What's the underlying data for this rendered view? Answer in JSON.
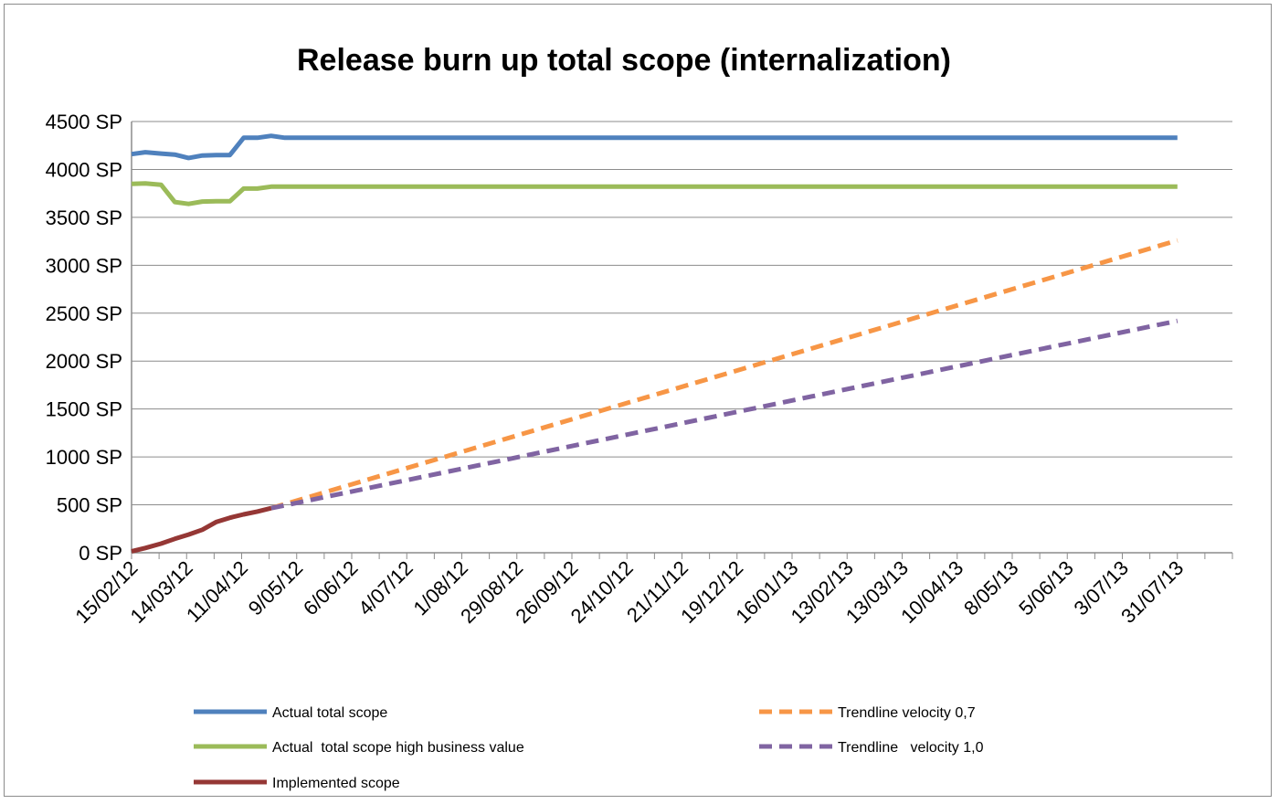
{
  "chart_data": {
    "type": "line",
    "title": "Release burn up total scope (internalization)",
    "xlabel": "",
    "ylabel": "",
    "ylim": [
      0,
      4500
    ],
    "y_ticks": [
      "0 SP",
      "500 SP",
      "1000 SP",
      "1500 SP",
      "2000 SP",
      "2500 SP",
      "3000 SP",
      "3500 SP",
      "4000 SP",
      "4500 SP"
    ],
    "x_tick_labels": [
      "15/02/12",
      "14/03/12",
      "11/04/12",
      "9/05/12",
      "6/06/12",
      "4/07/12",
      "1/08/12",
      "29/08/12",
      "26/09/12",
      "24/10/12",
      "21/11/12",
      "19/12/12",
      "16/01/13",
      "13/02/13",
      "13/03/13",
      "10/04/13",
      "8/05/13",
      "5/06/13",
      "3/07/13",
      "31/07/13"
    ],
    "grid": "horizontal",
    "legend_position": "bottom",
    "series": [
      {
        "name": "Actual total scope",
        "color": "#4f81bd",
        "style": "solid",
        "points": [
          [
            "15/02/12",
            4160
          ],
          [
            "22/02/12",
            4180
          ],
          [
            "01/03/12",
            4165
          ],
          [
            "08/03/12",
            4155
          ],
          [
            "15/03/12",
            4120
          ],
          [
            "22/03/12",
            4145
          ],
          [
            "29/03/12",
            4150
          ],
          [
            "05/04/12",
            4150
          ],
          [
            "12/04/12",
            4330
          ],
          [
            "19/04/12",
            4330
          ],
          [
            "26/04/12",
            4350
          ],
          [
            "03/05/12",
            4330
          ],
          [
            "31/07/13",
            4330
          ]
        ]
      },
      {
        "name": "Actual  total scope high business value",
        "color": "#9bbb59",
        "style": "solid",
        "points": [
          [
            "15/02/12",
            3850
          ],
          [
            "22/02/12",
            3855
          ],
          [
            "01/03/12",
            3840
          ],
          [
            "08/03/12",
            3660
          ],
          [
            "15/03/12",
            3640
          ],
          [
            "22/03/12",
            3665
          ],
          [
            "29/03/12",
            3668
          ],
          [
            "05/04/12",
            3668
          ],
          [
            "12/04/12",
            3800
          ],
          [
            "19/04/12",
            3800
          ],
          [
            "26/04/12",
            3820
          ],
          [
            "03/05/12",
            3820
          ],
          [
            "31/07/13",
            3820
          ]
        ]
      },
      {
        "name": "Implemented scope",
        "color": "#953735",
        "style": "solid",
        "points": [
          [
            "15/02/12",
            15
          ],
          [
            "22/02/12",
            50
          ],
          [
            "01/03/12",
            95
          ],
          [
            "08/03/12",
            145
          ],
          [
            "15/03/12",
            190
          ],
          [
            "22/03/12",
            240
          ],
          [
            "29/03/12",
            320
          ],
          [
            "05/04/12",
            365
          ],
          [
            "12/04/12",
            400
          ],
          [
            "19/04/12",
            430
          ],
          [
            "26/04/12",
            465
          ]
        ]
      },
      {
        "name": "Trendline velocity 0,7",
        "color": "#f79646",
        "style": "dashed",
        "points": [
          [
            "26/04/12",
            465
          ],
          [
            "31/07/13",
            3260
          ]
        ]
      },
      {
        "name": "Trendline   velocity 1,0",
        "color": "#8064a2",
        "style": "dashed",
        "points": [
          [
            "26/04/12",
            465
          ],
          [
            "31/07/13",
            2420
          ]
        ]
      }
    ]
  }
}
